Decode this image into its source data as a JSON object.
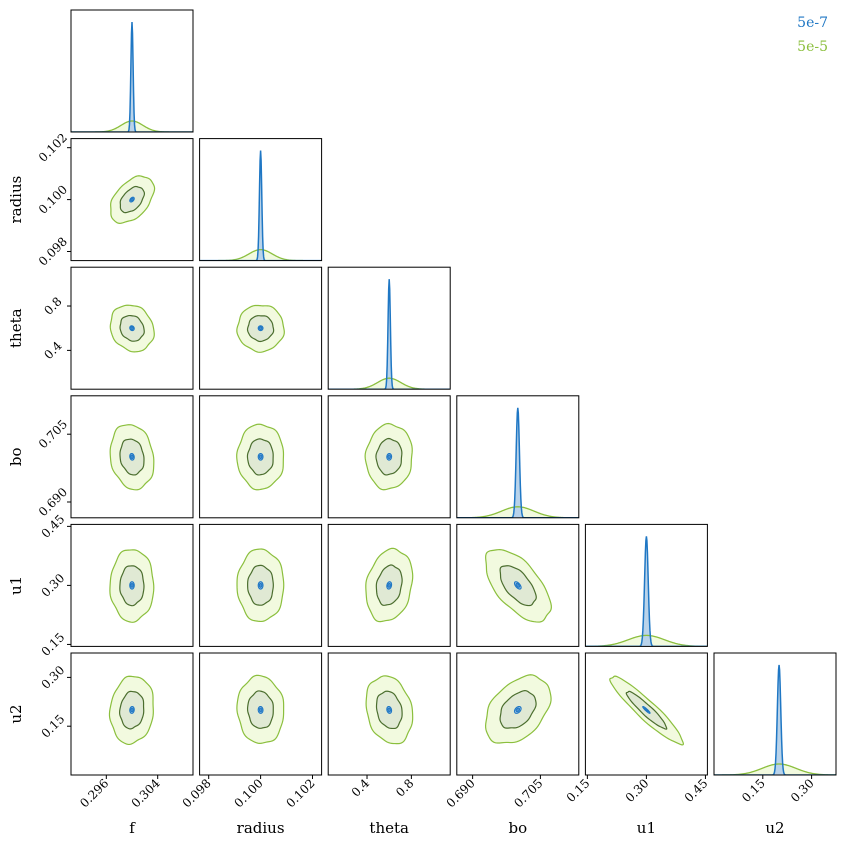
{
  "chart_data": {
    "type": "corner",
    "title": "",
    "parameters": [
      {
        "name": "f",
        "center": 0.3,
        "sigma_wide": 0.0017,
        "range": [
          0.2905,
          0.3095
        ],
        "ticks": [
          0.296,
          0.304
        ],
        "tick_labels": [
          "0.296",
          "0.304"
        ]
      },
      {
        "name": "radius",
        "center": 0.1,
        "sigma_wide": 0.00045,
        "range": [
          0.09765,
          0.10235
        ],
        "ticks": [
          0.098,
          0.1,
          0.102
        ],
        "tick_labels": [
          "0.098",
          "0.100",
          "0.102"
        ]
      },
      {
        "name": "theta",
        "center": 0.6,
        "sigma_wide": 0.105,
        "range": [
          0.05,
          1.15
        ],
        "ticks": [
          0.4,
          0.8
        ],
        "tick_labels": [
          "0.4",
          "0.8"
        ]
      },
      {
        "name": "bo",
        "center": 0.7,
        "sigma_wide": 0.0036,
        "range": [
          0.6865,
          0.7135
        ],
        "ticks": [
          0.69,
          0.705
        ],
        "tick_labels": [
          "0.690",
          "0.705"
        ]
      },
      {
        "name": "u1",
        "center": 0.3,
        "sigma_wide": 0.046,
        "range": [
          0.145,
          0.455
        ],
        "ticks": [
          0.15,
          0.3,
          0.45
        ],
        "tick_labels": [
          "0.15",
          "0.30",
          "0.45"
        ]
      },
      {
        "name": "u2",
        "center": 0.2,
        "sigma_wide": 0.052,
        "range": [
          0.0,
          0.375
        ],
        "ticks": [
          0.15,
          0.3
        ],
        "tick_labels": [
          "0.15",
          "0.30"
        ]
      }
    ],
    "correlations": [
      {
        "i": 1,
        "j": 0,
        "rho": 0.45
      },
      {
        "i": 2,
        "j": 0,
        "rho": -0.15
      },
      {
        "i": 2,
        "j": 1,
        "rho": 0.0
      },
      {
        "i": 3,
        "j": 0,
        "rho": -0.15
      },
      {
        "i": 3,
        "j": 1,
        "rho": 0.0
      },
      {
        "i": 3,
        "j": 2,
        "rho": 0.05
      },
      {
        "i": 4,
        "j": 0,
        "rho": 0.0
      },
      {
        "i": 4,
        "j": 1,
        "rho": 0.0
      },
      {
        "i": 4,
        "j": 2,
        "rho": 0.2
      },
      {
        "i": 4,
        "j": 3,
        "rho": -0.6
      },
      {
        "i": 5,
        "j": 0,
        "rho": 0.1
      },
      {
        "i": 5,
        "j": 1,
        "rho": -0.05
      },
      {
        "i": 5,
        "j": 2,
        "rho": -0.2
      },
      {
        "i": 5,
        "j": 3,
        "rho": 0.4
      },
      {
        "i": 5,
        "j": 4,
        "rho": -0.93
      }
    ],
    "series": [
      {
        "name": "5e-7",
        "color": "#1f77c4",
        "fill": "#b9d3ea",
        "sigma_scale": 0.1
      },
      {
        "name": "5e-5",
        "color": "#8bbf3d",
        "fill": "#f2fadf",
        "inner_fill": "#e0e9d4",
        "inner_color": "#4b6e2e",
        "sigma_scale": 1.0
      }
    ],
    "contour_levels_sigma": [
      1.1,
      2.0
    ],
    "legend_position": "top-right",
    "grid": false
  }
}
